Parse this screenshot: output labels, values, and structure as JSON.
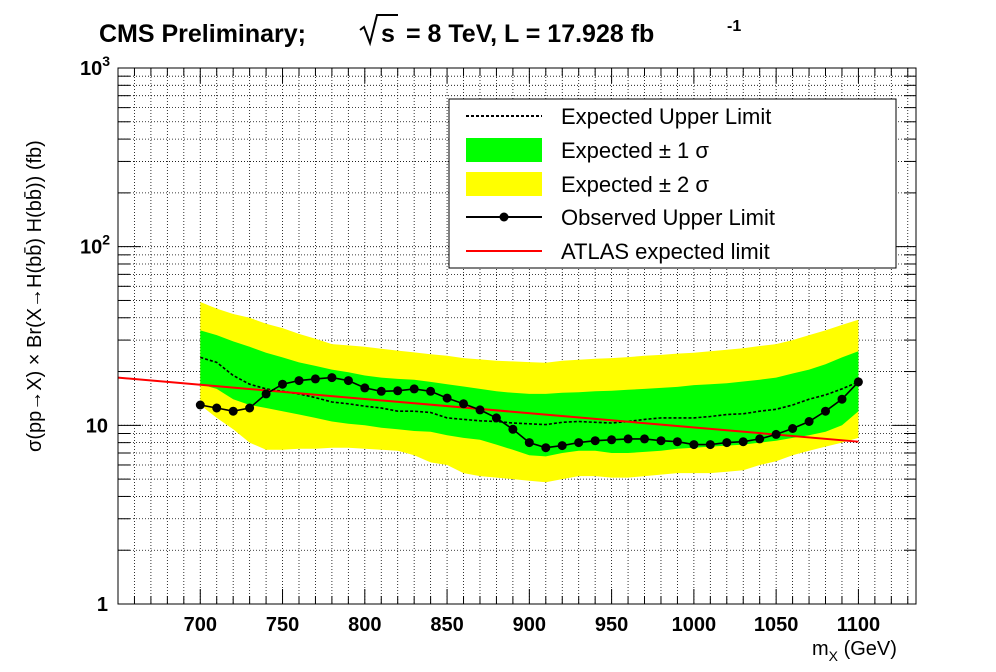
{
  "chart_data": {
    "type": "line",
    "title": "CMS Preliminary;",
    "title_energy": "= 8 TeV, L = 17.928 fb",
    "title_energy_symbol": "s",
    "title_lumi_exp": "-1",
    "xlabel": "m",
    "xlabel_sub": "X",
    "xlabel_unit": " (GeV)",
    "ylabel": "σ(pp→X) × Br(X→H(bb̄) H(bb̄)) (fb)",
    "xlim": [
      650,
      1135
    ],
    "ylim": [
      1,
      1000
    ],
    "yscale": "log",
    "grid": true,
    "x_ticks": [
      700,
      750,
      800,
      850,
      900,
      950,
      1000,
      1050,
      1100
    ],
    "y_tick_labels": [
      {
        "value": 1,
        "base": "1",
        "exp": ""
      },
      {
        "value": 10,
        "base": "10",
        "exp": ""
      },
      {
        "value": 100,
        "base": "10",
        "exp": "2"
      },
      {
        "value": 1000,
        "base": "10",
        "exp": "3"
      }
    ],
    "legend_position": "top-right",
    "legend": [
      {
        "label": "Expected Upper Limit",
        "style": "dashed-line"
      },
      {
        "label": "Expected ± 1 σ",
        "style": "fill",
        "color": "#00ff00"
      },
      {
        "label": "Expected ± 2 σ",
        "style": "fill",
        "color": "#ffff00"
      },
      {
        "label": "Observed Upper Limit",
        "style": "line-marker"
      },
      {
        "label": "ATLAS expected limit",
        "style": "line",
        "color": "#ff0000"
      }
    ],
    "colors": {
      "band_1sigma": "#00ff00",
      "band_2sigma": "#ffff00",
      "expected": "#000000",
      "observed": "#000000",
      "atlas": "#ff0000"
    },
    "x": [
      700,
      710,
      720,
      730,
      740,
      750,
      760,
      770,
      780,
      790,
      800,
      810,
      820,
      830,
      840,
      850,
      860,
      870,
      880,
      890,
      900,
      910,
      920,
      930,
      940,
      950,
      960,
      970,
      980,
      990,
      1000,
      1010,
      1020,
      1030,
      1040,
      1050,
      1060,
      1070,
      1080,
      1090,
      1100
    ],
    "series": [
      {
        "name": "Expected Upper Limit",
        "values": [
          24,
          22.5,
          19,
          17,
          16,
          15.5,
          15,
          14.3,
          13.5,
          13.2,
          12.8,
          12.5,
          12,
          12,
          11.8,
          11,
          10.8,
          10.6,
          10.5,
          10.3,
          10.2,
          10.1,
          10.4,
          10.5,
          10.4,
          10.3,
          10.5,
          10.8,
          11,
          11,
          11,
          11.2,
          11.5,
          11.6,
          12,
          12.3,
          13,
          14,
          14.8,
          16,
          17.5
        ]
      },
      {
        "name": "Expected ± 1 σ",
        "lower": [
          17,
          16,
          14,
          13,
          12.5,
          12,
          11.5,
          11,
          10.5,
          10.2,
          10,
          9.7,
          9.5,
          9.3,
          9.2,
          8.8,
          8.5,
          8.3,
          7.8,
          7.3,
          6.8,
          6.7,
          7,
          7.2,
          7.2,
          7,
          7,
          7.1,
          7.2,
          7.4,
          7.5,
          7.6,
          7.7,
          7.8,
          8,
          8.2,
          8.5,
          8.8,
          9.2,
          10,
          12
        ],
        "upper": [
          34,
          32,
          29.5,
          27.5,
          25.5,
          24,
          22.5,
          21.5,
          20.5,
          19.8,
          19,
          18.5,
          18.2,
          18,
          17.5,
          17,
          16.5,
          16,
          15.5,
          15.2,
          15,
          15,
          15.2,
          15.3,
          15.5,
          15.6,
          15.8,
          16,
          16.2,
          16.4,
          16.8,
          17,
          17.2,
          17.6,
          18,
          18.5,
          19.5,
          20.5,
          22,
          24,
          26
        ]
      },
      {
        "name": "Expected ± 2 σ",
        "lower": [
          13,
          11,
          9.5,
          8,
          7.3,
          7.3,
          7.4,
          7.4,
          7.5,
          7.5,
          7.4,
          7.3,
          7.2,
          6.8,
          6.2,
          6,
          5.4,
          5.2,
          5.1,
          5,
          4.9,
          4.8,
          5,
          5.2,
          5.2,
          5.1,
          5.1,
          5.2,
          5.3,
          5.4,
          5.4,
          5.4,
          5.5,
          5.6,
          6,
          6.3,
          6.8,
          7.2,
          7.6,
          8,
          8.5
        ],
        "upper": [
          49,
          45,
          42,
          40,
          37,
          35,
          32.5,
          30.5,
          28.5,
          28,
          27.5,
          26.8,
          26.2,
          25.6,
          25,
          24.5,
          23.8,
          23.4,
          23,
          22.8,
          22.6,
          22.4,
          23,
          23.3,
          23.6,
          23.8,
          24.1,
          24.5,
          24.8,
          25.2,
          25.5,
          26,
          26.5,
          27,
          27.8,
          28.5,
          30,
          32,
          34,
          36.5,
          39
        ]
      },
      {
        "name": "Observed Upper Limit",
        "values": [
          13,
          12.5,
          12,
          12.5,
          15,
          17,
          17.8,
          18.2,
          18.5,
          17.8,
          16.2,
          15.5,
          15.6,
          16,
          15.5,
          14.2,
          13.2,
          12.2,
          11,
          9.5,
          8,
          7.5,
          7.7,
          8,
          8.2,
          8.3,
          8.4,
          8.4,
          8.2,
          8.1,
          7.8,
          7.8,
          8,
          8.1,
          8.4,
          8.9,
          9.6,
          10.5,
          12,
          14,
          17.5
        ]
      },
      {
        "name": "ATLAS expected limit",
        "x": [
          650,
          1100
        ],
        "values": [
          18.5,
          8.1
        ]
      }
    ]
  }
}
